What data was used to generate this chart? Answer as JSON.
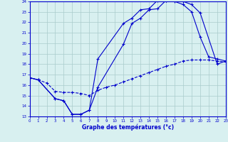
{
  "xlabel": "Graphe des températures (°c)",
  "bg_color": "#d8f0f0",
  "line_color": "#0000cc",
  "grid_color": "#aacccc",
  "xlim": [
    0,
    23
  ],
  "ylim": [
    13,
    24
  ],
  "xticks": [
    0,
    1,
    2,
    3,
    4,
    5,
    6,
    7,
    8,
    9,
    10,
    11,
    12,
    13,
    14,
    15,
    16,
    17,
    18,
    19,
    20,
    21,
    22,
    23
  ],
  "yticks": [
    13,
    14,
    15,
    16,
    17,
    18,
    19,
    20,
    21,
    22,
    23,
    24
  ],
  "line1_x": [
    0,
    1,
    3,
    4,
    5,
    6,
    7,
    8,
    11,
    12,
    13,
    14,
    15,
    16,
    17,
    18,
    19,
    20,
    21,
    22,
    23
  ],
  "line1_y": [
    16.7,
    16.5,
    14.7,
    14.5,
    13.2,
    13.2,
    13.6,
    18.5,
    21.9,
    22.4,
    23.2,
    23.3,
    24.1,
    24.1,
    24.0,
    23.7,
    23.0,
    20.6,
    18.7,
    18.5,
    18.3
  ],
  "line2_x": [
    0,
    1,
    3,
    4,
    5,
    6,
    7,
    8,
    11,
    12,
    13,
    14,
    15,
    16,
    17,
    18,
    19,
    20,
    22,
    23
  ],
  "line2_y": [
    16.7,
    16.5,
    14.7,
    14.5,
    13.2,
    13.2,
    13.6,
    15.8,
    19.9,
    21.9,
    22.4,
    23.2,
    23.3,
    24.1,
    24.1,
    24.0,
    23.7,
    22.9,
    18.0,
    18.3
  ],
  "line3_x": [
    0,
    1,
    2,
    3,
    4,
    5,
    6,
    7,
    8,
    9,
    10,
    11,
    12,
    13,
    14,
    15,
    16,
    17,
    18,
    19,
    20,
    21,
    22,
    23
  ],
  "line3_y": [
    16.7,
    16.5,
    16.2,
    15.4,
    15.3,
    15.3,
    15.2,
    15.0,
    15.5,
    15.8,
    16.0,
    16.3,
    16.6,
    16.9,
    17.2,
    17.5,
    17.8,
    18.0,
    18.3,
    18.4,
    18.4,
    18.4,
    18.3,
    18.2
  ]
}
